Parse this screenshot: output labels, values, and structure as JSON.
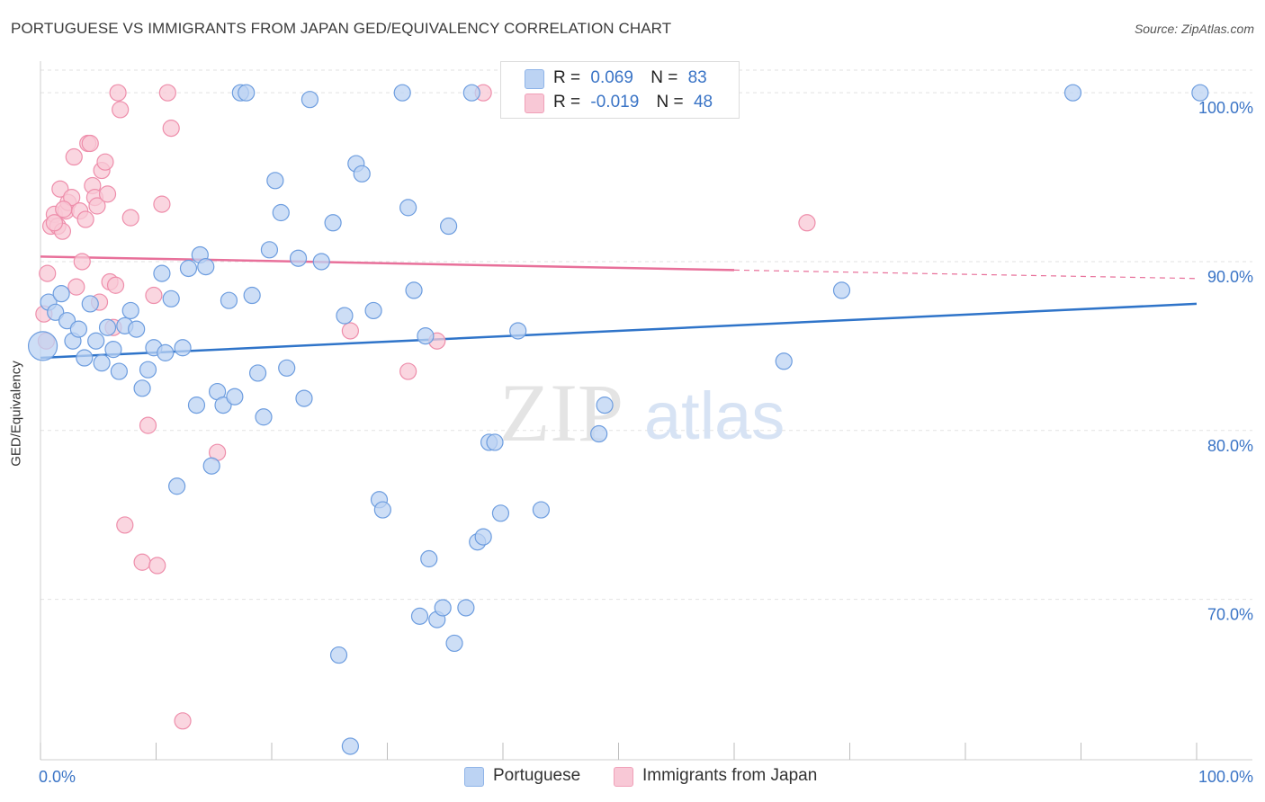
{
  "title": "PORTUGUESE VS IMMIGRANTS FROM JAPAN GED/EQUIVALENCY CORRELATION CHART",
  "source": "Source: ZipAtlas.com",
  "watermark": {
    "zip": "ZIP",
    "atlas": "atlas"
  },
  "legend_stats": [
    {
      "r_label": "R =",
      "r_value": "0.069",
      "n_label": "N =",
      "n_value": "83",
      "color": "#8fb4e8",
      "fill": "#bcd3f3"
    },
    {
      "r_label": "R =",
      "r_value": "-0.019",
      "n_label": "N =",
      "n_value": "48",
      "color": "#f0a0b8",
      "fill": "#f8c8d6"
    }
  ],
  "colors": {
    "blue_point_fill": "#bcd3f3",
    "blue_point_stroke": "#6d9ddf",
    "blue_line": "#2f74c9",
    "pink_point_fill": "#f8c8d6",
    "pink_point_stroke": "#ee8eab",
    "pink_line": "#e8709a",
    "tick_label": "#3a74c6",
    "grid": "#e2e2e2"
  },
  "chart_data": {
    "type": "scatter",
    "title": "PORTUGUESE VS IMMIGRANTS FROM JAPAN GED/EQUIVALENCY CORRELATION CHART",
    "xlabel": "",
    "ylabel": "GED/Equivalency",
    "xlim": [
      0,
      100
    ],
    "ylim": [
      60.5,
      101.5
    ],
    "x_tick_labels": [
      "0.0%",
      "100.0%"
    ],
    "y_ticks": [
      70,
      80,
      90,
      100
    ],
    "y_tick_labels": [
      "70.0%",
      "80.0%",
      "90.0%",
      "100.0%"
    ],
    "grid": true,
    "legend_position": "bottom",
    "series": [
      {
        "name": "Portuguese",
        "r": 0.069,
        "n": 83,
        "trend": {
          "x": [
            0,
            100
          ],
          "y": [
            84.3,
            87.5
          ]
        },
        "points": [
          [
            0.2,
            85.0
          ],
          [
            0.7,
            87.6
          ],
          [
            1.3,
            87.0
          ],
          [
            1.8,
            88.1
          ],
          [
            2.3,
            86.5
          ],
          [
            2.8,
            85.3
          ],
          [
            3.3,
            86.0
          ],
          [
            3.8,
            84.3
          ],
          [
            4.3,
            87.5
          ],
          [
            4.8,
            85.3
          ],
          [
            5.3,
            84.0
          ],
          [
            5.8,
            86.1
          ],
          [
            6.3,
            84.8
          ],
          [
            6.8,
            83.5
          ],
          [
            7.3,
            86.2
          ],
          [
            7.8,
            87.1
          ],
          [
            8.3,
            86.0
          ],
          [
            8.8,
            82.5
          ],
          [
            9.3,
            83.6
          ],
          [
            9.8,
            84.9
          ],
          [
            10.5,
            89.3
          ],
          [
            10.8,
            84.6
          ],
          [
            11.3,
            87.8
          ],
          [
            11.8,
            76.7
          ],
          [
            12.3,
            84.9
          ],
          [
            12.8,
            89.6
          ],
          [
            13.5,
            81.5
          ],
          [
            13.8,
            90.4
          ],
          [
            14.3,
            89.7
          ],
          [
            14.8,
            77.9
          ],
          [
            15.3,
            82.3
          ],
          [
            15.8,
            81.5
          ],
          [
            16.3,
            87.7
          ],
          [
            16.8,
            82.0
          ],
          [
            17.3,
            100.0
          ],
          [
            17.8,
            100.0
          ],
          [
            18.3,
            88.0
          ],
          [
            18.8,
            83.4
          ],
          [
            19.3,
            80.8
          ],
          [
            19.8,
            90.7
          ],
          [
            20.3,
            94.8
          ],
          [
            20.8,
            92.9
          ],
          [
            21.3,
            83.7
          ],
          [
            22.3,
            90.2
          ],
          [
            22.8,
            81.9
          ],
          [
            23.3,
            99.6
          ],
          [
            24.3,
            90.0
          ],
          [
            25.3,
            92.3
          ],
          [
            25.8,
            66.7
          ],
          [
            26.3,
            86.8
          ],
          [
            26.8,
            61.3
          ],
          [
            27.3,
            95.8
          ],
          [
            27.8,
            95.2
          ],
          [
            28.8,
            87.1
          ],
          [
            29.3,
            75.9
          ],
          [
            29.6,
            75.3
          ],
          [
            31.3,
            100.0
          ],
          [
            31.8,
            93.2
          ],
          [
            32.3,
            88.3
          ],
          [
            32.8,
            69.0
          ],
          [
            33.3,
            85.6
          ],
          [
            33.6,
            72.4
          ],
          [
            34.3,
            68.8
          ],
          [
            34.8,
            69.5
          ],
          [
            35.3,
            92.1
          ],
          [
            35.8,
            67.4
          ],
          [
            36.8,
            69.5
          ],
          [
            37.3,
            100.0
          ],
          [
            37.8,
            73.4
          ],
          [
            38.3,
            73.7
          ],
          [
            38.8,
            79.3
          ],
          [
            39.3,
            79.3
          ],
          [
            39.8,
            75.1
          ],
          [
            41.3,
            85.9
          ],
          [
            43.3,
            75.3
          ],
          [
            45.3,
            100.0
          ],
          [
            48.3,
            79.8
          ],
          [
            48.8,
            81.5
          ],
          [
            64.3,
            84.1
          ],
          [
            69.3,
            88.3
          ],
          [
            89.3,
            100.0
          ],
          [
            100.3,
            100.0
          ]
        ]
      },
      {
        "name": "Immigrants from Japan",
        "r": -0.019,
        "n": 48,
        "trend": {
          "x": [
            0,
            60
          ],
          "y": [
            90.3,
            89.5
          ]
        },
        "trend_dashed": {
          "x": [
            60,
            100
          ],
          "y": [
            89.5,
            89.0
          ]
        },
        "points": [
          [
            0.3,
            86.9
          ],
          [
            0.6,
            89.3
          ],
          [
            0.9,
            92.1
          ],
          [
            1.2,
            92.8
          ],
          [
            1.5,
            92.1
          ],
          [
            1.7,
            94.3
          ],
          [
            1.9,
            91.8
          ],
          [
            2.2,
            93.0
          ],
          [
            2.4,
            93.5
          ],
          [
            2.7,
            93.8
          ],
          [
            2.9,
            96.2
          ],
          [
            3.1,
            88.5
          ],
          [
            3.4,
            93.0
          ],
          [
            3.6,
            90.0
          ],
          [
            3.9,
            92.5
          ],
          [
            4.1,
            97.0
          ],
          [
            4.3,
            97.0
          ],
          [
            4.5,
            94.5
          ],
          [
            4.7,
            93.8
          ],
          [
            4.9,
            93.3
          ],
          [
            5.1,
            87.6
          ],
          [
            5.3,
            95.4
          ],
          [
            5.6,
            95.9
          ],
          [
            5.8,
            94.0
          ],
          [
            6.0,
            88.8
          ],
          [
            6.3,
            86.1
          ],
          [
            6.5,
            88.6
          ],
          [
            6.7,
            100.0
          ],
          [
            6.9,
            99.0
          ],
          [
            7.3,
            74.4
          ],
          [
            7.8,
            92.6
          ],
          [
            8.8,
            72.2
          ],
          [
            9.3,
            80.3
          ],
          [
            9.8,
            88.0
          ],
          [
            10.1,
            72.0
          ],
          [
            10.5,
            93.4
          ],
          [
            11.0,
            100.0
          ],
          [
            11.3,
            97.9
          ],
          [
            12.3,
            62.8
          ],
          [
            15.3,
            78.7
          ],
          [
            26.8,
            85.9
          ],
          [
            31.8,
            83.5
          ],
          [
            34.3,
            85.3
          ],
          [
            38.3,
            100.0
          ],
          [
            66.3,
            92.3
          ],
          [
            1.2,
            92.3
          ],
          [
            2.0,
            93.1
          ],
          [
            0.5,
            85.3
          ]
        ]
      }
    ]
  }
}
